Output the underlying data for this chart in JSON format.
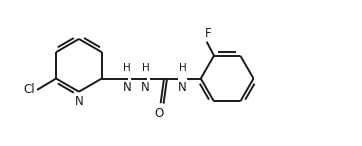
{
  "background_color": "#ffffff",
  "line_color": "#1a1a1a",
  "line_width": 1.4,
  "font_size": 8.5,
  "figsize": [
    3.62,
    1.46
  ],
  "dpi": 100,
  "xlim": [
    -0.1,
    7.2
  ],
  "ylim": [
    -0.5,
    2.9
  ]
}
